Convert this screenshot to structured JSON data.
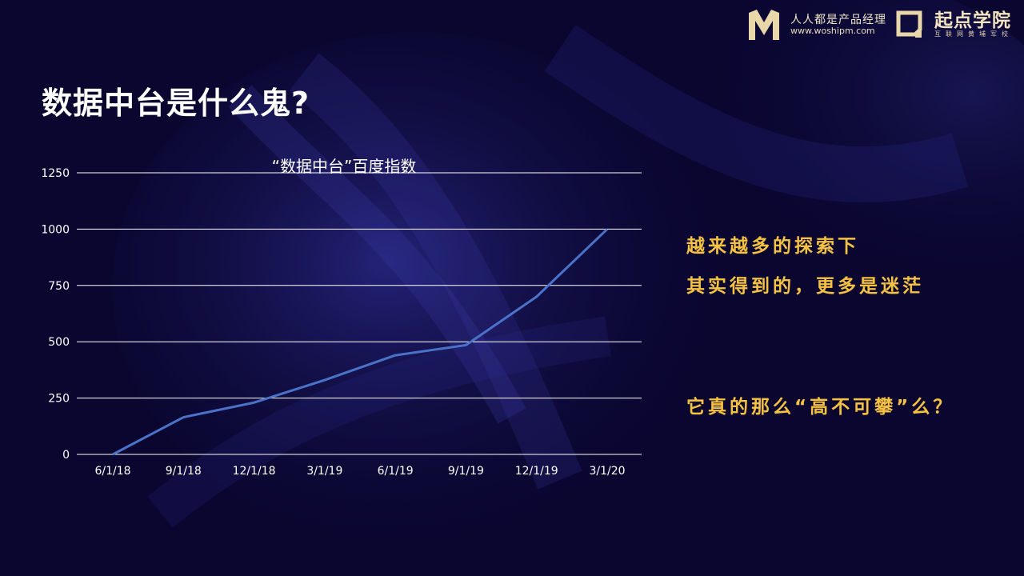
{
  "brand": {
    "logo1_text": "人人都是产品经理",
    "logo1_url": "www.woshipm.com",
    "logo2_text": "起点学院",
    "logo2_sub": "互联网黄埔军校",
    "colors": {
      "logo": "#f0e6c8",
      "accent": "#f5c242",
      "line": "#4a72c8",
      "background": "#0a0630"
    }
  },
  "page": {
    "title": "数据中台是什么鬼?"
  },
  "side_text": {
    "line1": "越来越多的探索下",
    "line2": "其实得到的，更多是迷茫",
    "line3": "它真的那么“高不可攀”么？"
  },
  "chart_data": {
    "type": "line",
    "title": "“数据中台”百度指数",
    "categories": [
      "6/1/18",
      "9/1/18",
      "12/1/18",
      "3/1/19",
      "6/1/19",
      "9/1/19",
      "12/1/19",
      "3/1/20"
    ],
    "x": [
      "6/1/18",
      "9/1/18",
      "12/1/18",
      "3/1/19",
      "6/1/19",
      "9/1/19",
      "12/1/19",
      "3/1/20"
    ],
    "series": [
      {
        "values": [
          0,
          165,
          230,
          330,
          440,
          485,
          700,
          1000
        ]
      }
    ],
    "yticks": [
      "0",
      "250",
      "500",
      "750",
      "1000",
      "1250"
    ],
    "ylim": [
      0,
      1250
    ],
    "grid": true,
    "legend": "none"
  }
}
